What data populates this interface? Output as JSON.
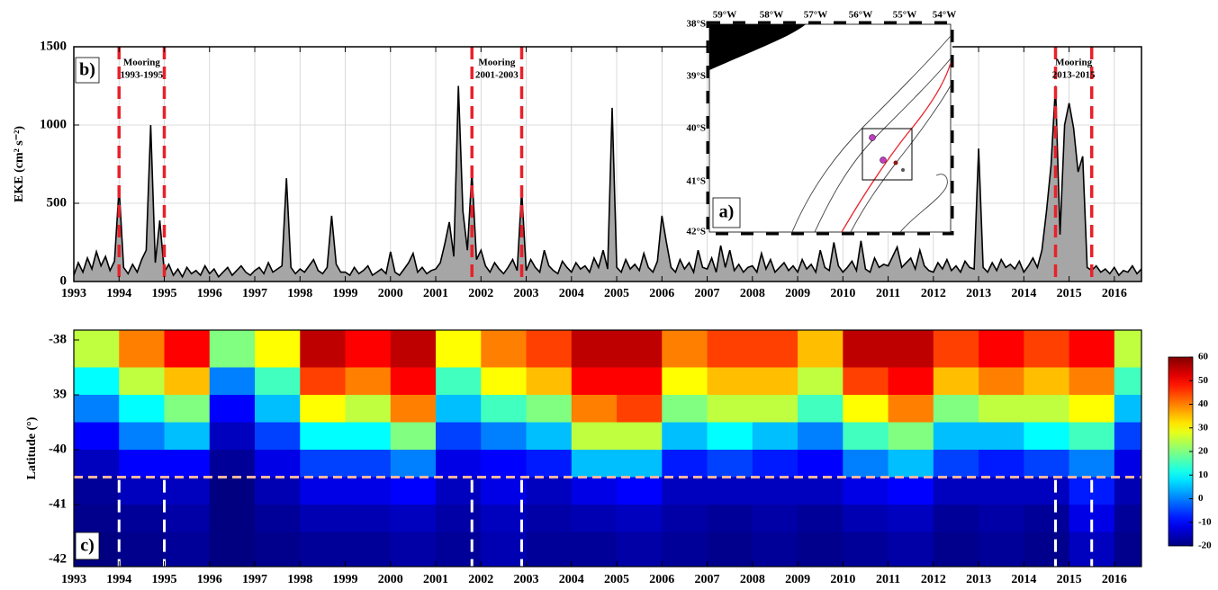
{
  "chart_data": [
    {
      "type": "area",
      "panel_label": "b)",
      "ylabel": "EKE (cm² s⁻²)",
      "color": "#a6a6a6",
      "line_color": "#000000",
      "x": [
        1993,
        1993.1,
        1993.2,
        1993.3,
        1993.4,
        1993.5,
        1993.6,
        1993.7,
        1993.8,
        1993.9,
        1994,
        1994.1,
        1994.2,
        1994.3,
        1994.4,
        1994.5,
        1994.6,
        1994.7,
        1994.8,
        1994.9,
        1995,
        1995.1,
        1995.2,
        1995.3,
        1995.4,
        1995.5,
        1995.6,
        1995.7,
        1995.8,
        1995.9,
        1996,
        1996.1,
        1996.2,
        1996.3,
        1996.4,
        1996.5,
        1996.6,
        1996.7,
        1996.8,
        1996.9,
        1997,
        1997.1,
        1997.2,
        1997.3,
        1997.4,
        1997.5,
        1997.6,
        1997.7,
        1997.8,
        1997.9,
        1998,
        1998.1,
        1998.2,
        1998.3,
        1998.4,
        1998.5,
        1998.6,
        1998.7,
        1998.8,
        1998.9,
        1999,
        1999.1,
        1999.2,
        1999.3,
        1999.4,
        1999.5,
        1999.6,
        1999.7,
        1999.8,
        1999.9,
        2000,
        2000.1,
        2000.2,
        2000.3,
        2000.4,
        2000.5,
        2000.6,
        2000.7,
        2000.8,
        2000.9,
        2001,
        2001.1,
        2001.2,
        2001.3,
        2001.4,
        2001.5,
        2001.6,
        2001.7,
        2001.8,
        2001.9,
        2002,
        2002.1,
        2002.2,
        2002.3,
        2002.4,
        2002.5,
        2002.6,
        2002.7,
        2002.8,
        2002.9,
        2003,
        2003.1,
        2003.2,
        2003.3,
        2003.4,
        2003.5,
        2003.6,
        2003.7,
        2003.8,
        2003.9,
        2004,
        2004.1,
        2004.2,
        2004.3,
        2004.4,
        2004.5,
        2004.6,
        2004.7,
        2004.8,
        2004.9,
        2005,
        2005.1,
        2005.2,
        2005.3,
        2005.4,
        2005.5,
        2005.6,
        2005.7,
        2005.8,
        2005.9,
        2006,
        2006.1,
        2006.2,
        2006.3,
        2006.4,
        2006.5,
        2006.6,
        2006.7,
        2006.8,
        2006.9,
        2007,
        2007.1,
        2007.2,
        2007.3,
        2007.4,
        2007.5,
        2007.6,
        2007.7,
        2007.8,
        2007.9,
        2008,
        2008.1,
        2008.2,
        2008.3,
        2008.4,
        2008.5,
        2008.6,
        2008.7,
        2008.8,
        2008.9,
        2009,
        2009.1,
        2009.2,
        2009.3,
        2009.4,
        2009.5,
        2009.6,
        2009.7,
        2009.8,
        2009.9,
        2010,
        2010.1,
        2010.2,
        2010.3,
        2010.4,
        2010.5,
        2010.6,
        2010.7,
        2010.8,
        2010.9,
        2011,
        2011.1,
        2011.2,
        2011.3,
        2011.4,
        2011.5,
        2011.6,
        2011.7,
        2011.8,
        2011.9,
        2012,
        2012.1,
        2012.2,
        2012.3,
        2012.4,
        2012.5,
        2012.6,
        2012.7,
        2012.8,
        2012.9,
        2013,
        2013.1,
        2013.2,
        2013.3,
        2013.4,
        2013.5,
        2013.6,
        2013.7,
        2013.8,
        2013.9,
        2014,
        2014.1,
        2014.2,
        2014.3,
        2014.4,
        2014.5,
        2014.6,
        2014.7,
        2014.8,
        2014.9,
        2015,
        2015.1,
        2015.2,
        2015.3,
        2015.4,
        2015.5,
        2015.6,
        2015.7,
        2015.8,
        2015.9,
        2016,
        2016.1,
        2016.2,
        2016.3,
        2016.4,
        2016.5,
        2016.6
      ],
      "values": [
        40,
        120,
        60,
        150,
        80,
        190,
        100,
        160,
        70,
        130,
        600,
        90,
        50,
        110,
        60,
        140,
        200,
        1000,
        120,
        390,
        60,
        110,
        40,
        80,
        30,
        90,
        50,
        70,
        40,
        100,
        50,
        80,
        30,
        60,
        90,
        40,
        70,
        100,
        60,
        40,
        70,
        90,
        50,
        120,
        60,
        80,
        100,
        660,
        90,
        50,
        80,
        60,
        100,
        140,
        70,
        50,
        90,
        420,
        110,
        60,
        60,
        40,
        90,
        50,
        70,
        100,
        40,
        60,
        80,
        50,
        190,
        60,
        40,
        80,
        120,
        180,
        60,
        90,
        50,
        70,
        80,
        120,
        240,
        380,
        160,
        1250,
        450,
        200,
        700,
        140,
        200,
        100,
        60,
        120,
        80,
        50,
        90,
        140,
        70,
        580,
        70,
        140,
        90,
        60,
        200,
        100,
        70,
        50,
        130,
        90,
        60,
        120,
        80,
        100,
        60,
        150,
        90,
        200,
        80,
        1110,
        90,
        60,
        140,
        80,
        110,
        70,
        180,
        90,
        60,
        130,
        420,
        250,
        90,
        60,
        140,
        80,
        120,
        60,
        200,
        90,
        80,
        150,
        60,
        230,
        90,
        200,
        70,
        110,
        60,
        90,
        100,
        60,
        180,
        80,
        140,
        60,
        90,
        120,
        70,
        100,
        60,
        140,
        80,
        110,
        60,
        200,
        90,
        70,
        250,
        100,
        60,
        90,
        130,
        70,
        260,
        80,
        60,
        150,
        90,
        110,
        100,
        160,
        220,
        90,
        120,
        150,
        80,
        200,
        100,
        70,
        60,
        120,
        80,
        140,
        70,
        100,
        60,
        130,
        90,
        80,
        850,
        90,
        60,
        120,
        70,
        140,
        90,
        110,
        80,
        130,
        60,
        100,
        150,
        90,
        200,
        450,
        740,
        1250,
        300,
        1000,
        1140,
        980,
        700,
        800,
        90,
        70,
        100,
        60,
        80,
        50,
        90,
        40,
        70,
        60,
        100,
        50,
        80
      ],
      "xlim": [
        1993,
        2016.6
      ],
      "xticks": [
        1993,
        1994,
        1995,
        1996,
        1997,
        1998,
        1999,
        2000,
        2001,
        2002,
        2003,
        2004,
        2005,
        2006,
        2007,
        2008,
        2009,
        2010,
        2011,
        2012,
        2013,
        2014,
        2015,
        2016
      ],
      "ylim": [
        0,
        1500
      ],
      "yticks": [
        0,
        500,
        1000,
        1500
      ],
      "grid": true,
      "mooring_color": "#e8212a",
      "moorings": [
        {
          "label": "Mooring",
          "period": "1993-1995",
          "x": [
            1994.0,
            1995.0
          ]
        },
        {
          "label": "Mooring",
          "period": "2001-2003",
          "x": [
            2001.8,
            2002.9
          ]
        },
        {
          "label": "Mooring",
          "period": "2013-2015",
          "x": [
            2014.7,
            2015.5
          ]
        }
      ]
    },
    {
      "type": "heatmap",
      "panel_label": "c)",
      "ylabel": "Latitude (°)",
      "colormap": "jet",
      "x_edges": [
        1993,
        1994,
        1995,
        1996,
        1997,
        1998,
        1999,
        2000,
        2001,
        2002,
        2003,
        2004,
        2005,
        2006,
        2007,
        2008,
        2009,
        2010,
        2011,
        2012,
        2013,
        2014,
        2015,
        2016,
        2016.6
      ],
      "y_edges": [
        -37.82,
        -38.5,
        -39,
        -39.5,
        -40,
        -40.5,
        -41,
        -41.5,
        -42.13
      ],
      "values": [
        [
          25,
          40,
          50,
          20,
          30,
          55,
          50,
          55,
          30,
          40,
          45,
          55,
          55,
          40,
          45,
          45,
          35,
          55,
          55,
          45,
          50,
          45,
          50,
          25
        ],
        [
          10,
          25,
          35,
          0,
          15,
          45,
          40,
          50,
          15,
          30,
          35,
          50,
          50,
          30,
          35,
          35,
          25,
          45,
          50,
          35,
          40,
          35,
          40,
          15
        ],
        [
          0,
          10,
          20,
          -10,
          5,
          30,
          25,
          40,
          5,
          15,
          20,
          40,
          45,
          20,
          25,
          25,
          15,
          30,
          40,
          20,
          25,
          25,
          30,
          5
        ],
        [
          -10,
          0,
          5,
          -15,
          -5,
          10,
          10,
          20,
          -5,
          0,
          5,
          25,
          25,
          5,
          10,
          5,
          0,
          15,
          20,
          5,
          5,
          10,
          15,
          -5
        ],
        [
          -15,
          -10,
          -10,
          -18,
          -12,
          -5,
          -5,
          0,
          -12,
          -10,
          -8,
          5,
          5,
          -8,
          -5,
          -8,
          -10,
          0,
          5,
          -5,
          -8,
          -5,
          0,
          -12
        ],
        [
          -18,
          -15,
          -15,
          -20,
          -16,
          -12,
          -12,
          -10,
          -15,
          -12,
          -15,
          -12,
          -10,
          -15,
          -15,
          -15,
          -15,
          -12,
          -10,
          -15,
          -15,
          -15,
          -8,
          -16
        ],
        [
          -19,
          -18,
          -17,
          -20,
          -18,
          -16,
          -16,
          -15,
          -17,
          -15,
          -17,
          -16,
          -15,
          -17,
          -18,
          -17,
          -18,
          -16,
          -15,
          -18,
          -17,
          -18,
          -12,
          -18
        ],
        [
          -20,
          -19,
          -18,
          -20,
          -19,
          -18,
          -18,
          -17,
          -18,
          -16,
          -18,
          -18,
          -17,
          -18,
          -19,
          -18,
          -19,
          -18,
          -17,
          -19,
          -18,
          -19,
          -15,
          -19
        ]
      ],
      "xlim": [
        1993,
        2016.6
      ],
      "xticks": [
        1993,
        1994,
        1995,
        1996,
        1997,
        1998,
        1999,
        2000,
        2001,
        2002,
        2003,
        2004,
        2005,
        2006,
        2007,
        2008,
        2009,
        2010,
        2011,
        2012,
        2013,
        2014,
        2015,
        2016
      ],
      "ylim": [
        -42.13,
        -37.82
      ],
      "yticks": [
        -38,
        {
          "value": -39,
          "label": "39"
        },
        -40,
        -41,
        -42
      ],
      "clim": [
        -20,
        60
      ],
      "cticks": [
        60,
        50,
        40,
        30,
        20,
        10,
        0,
        -10,
        -20
      ],
      "reference_latitude": -40.5,
      "reference_color": "#f4b6a0"
    }
  ],
  "inset_map": {
    "panel_label": "a)",
    "lon_labels": [
      "59°W",
      "58°W",
      "57°W",
      "56°W",
      "55°W",
      "54°W"
    ],
    "lat_labels": [
      "38°S",
      "39°S",
      "40°S",
      "41°S",
      "42°S"
    ]
  }
}
